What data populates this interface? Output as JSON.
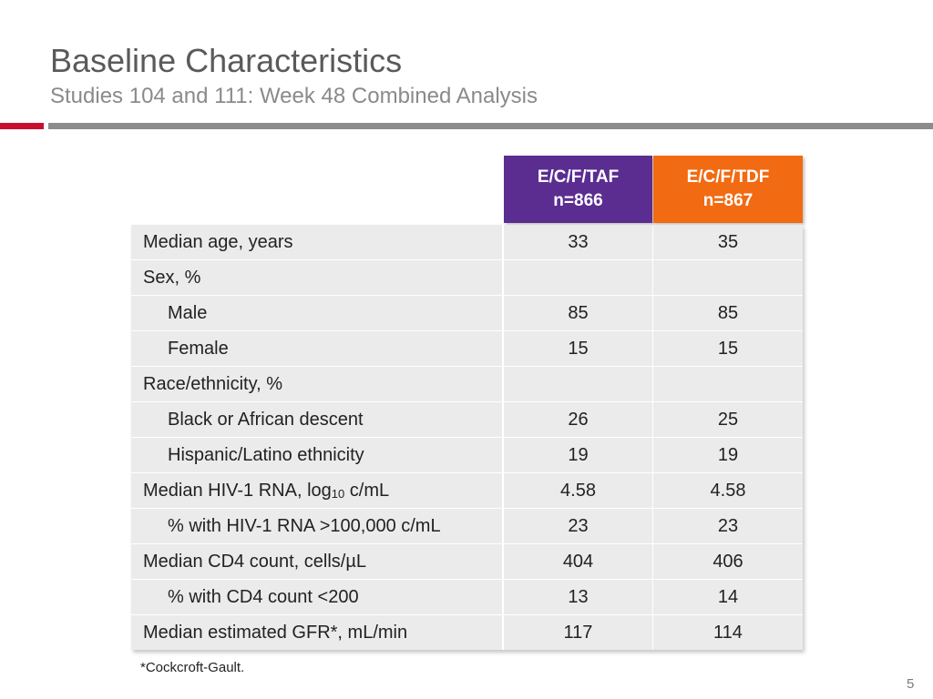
{
  "slide": {
    "title": "Baseline Characteristics",
    "subtitle": "Studies 104 and 111: Week 48 Combined Analysis",
    "footnote": "*Cockcroft-Gault.",
    "page_number": "5",
    "colors": {
      "accent_red": "#c8102e",
      "taf_purple": "#5b2d91",
      "tdf_orange": "#f26a12",
      "row_bg": "#ebebeb"
    }
  },
  "table": {
    "columns": [
      {
        "name": "E/C/F/TAF",
        "n": "n=866"
      },
      {
        "name": "E/C/F/TDF",
        "n": "n=867"
      }
    ],
    "rows": [
      {
        "label": "Median age, years",
        "indent": false,
        "taf": "33",
        "tdf": "35"
      },
      {
        "label": "Sex, %",
        "indent": false,
        "taf": "",
        "tdf": ""
      },
      {
        "label": "Male",
        "indent": true,
        "taf": "85",
        "tdf": "85"
      },
      {
        "label": "Female",
        "indent": true,
        "taf": "15",
        "tdf": "15"
      },
      {
        "label": "Race/ethnicity, %",
        "indent": false,
        "taf": "",
        "tdf": ""
      },
      {
        "label": "Black or African descent",
        "indent": true,
        "taf": "26",
        "tdf": "25"
      },
      {
        "label": "Hispanic/Latino ethnicity",
        "indent": true,
        "taf": "19",
        "tdf": "19"
      },
      {
        "label": "Median HIV-1 RNA, log",
        "label_sub": "10",
        "label_after": " c/mL",
        "indent": false,
        "taf": "4.58",
        "tdf": "4.58"
      },
      {
        "label": "% with HIV-1 RNA >100,000 c/mL",
        "indent": true,
        "taf": "23",
        "tdf": "23"
      },
      {
        "label": "Median CD4 count, cells/µL",
        "indent": false,
        "taf": "404",
        "tdf": "406"
      },
      {
        "label": "% with CD4 count <200",
        "indent": true,
        "taf": "13",
        "tdf": "14"
      },
      {
        "label": "Median estimated GFR*, mL/min",
        "indent": false,
        "taf": "117",
        "tdf": "114"
      }
    ]
  }
}
